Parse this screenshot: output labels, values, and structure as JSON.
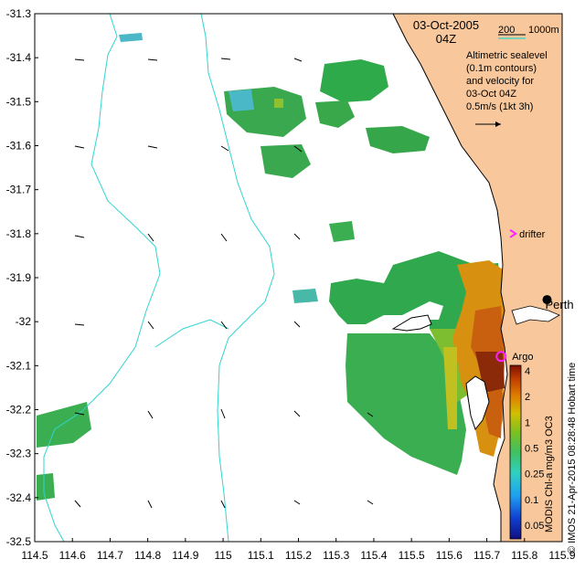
{
  "map": {
    "date_line": "03-Oct-2005",
    "time_line": "04Z",
    "bathymetry_legend": {
      "label_200": "200",
      "label_1000": "1000m",
      "color_1000m": "#30d5d0"
    },
    "description_lines": [
      "Altimetric sealevel",
      "(0.1m contours)",
      "and velocity for",
      "03-Oct 04Z",
      "0.5m/s (1kt 3h)"
    ],
    "labels": {
      "drifter": "drifter",
      "perth": "Perth",
      "argo": "Argo"
    },
    "colorbar": {
      "ticks": [
        "4",
        "2",
        "1",
        "0.5",
        "0.25",
        "0.1",
        "0.05"
      ],
      "caption": "MODIS Chl-a mg/m3 OC3"
    },
    "credit": "© IMOS 21-Apr-2015 08:28:48 Hobart time",
    "x_axis": {
      "ticks": [
        "114.5",
        "114.6",
        "114.7",
        "114.8",
        "114.9",
        "115",
        "115.1",
        "115.2",
        "115.3",
        "115.4",
        "115.5",
        "115.6",
        "115.7",
        "115.8",
        "115.9"
      ]
    },
    "y_axis": {
      "ticks": [
        "-31.3",
        "-31.4",
        "-31.5",
        "-31.6",
        "-31.7",
        "-31.8",
        "-31.9",
        "-32",
        "-32.1",
        "-32.2",
        "-32.3",
        "-32.4",
        "-32.5"
      ]
    },
    "colors": {
      "land": "#f8c89c",
      "drifter_marker": "#ff20ff",
      "argo_marker": "#ff20ff",
      "ocean": "#ffffff"
    },
    "extent": {
      "lon_min": 114.5,
      "lon_max": 115.9,
      "lat_min": -32.5,
      "lat_max": -31.3
    },
    "points": {
      "perth": {
        "lon": 115.86,
        "lat": -31.95
      },
      "drifter": {
        "lon": 115.762,
        "lat": -31.8
      },
      "argo": {
        "lon": 115.738,
        "lat": -32.079
      }
    }
  }
}
